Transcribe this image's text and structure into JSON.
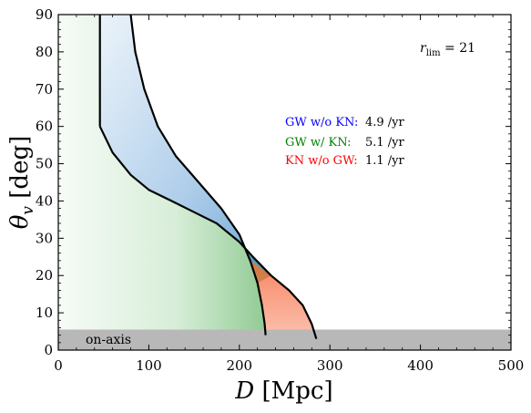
{
  "chart_data": {
    "type": "area",
    "xlabel": "D [Mpc]",
    "ylabel": "θ_v [deg]",
    "xlim": [
      0,
      500
    ],
    "ylim": [
      0,
      90
    ],
    "xticks": [
      "0",
      "100",
      "200",
      "300",
      "400",
      "500"
    ],
    "yticks": [
      "0",
      "10",
      "20",
      "30",
      "40",
      "50",
      "60",
      "70",
      "80",
      "90"
    ],
    "grid": false,
    "annotation_rlim": "r_lim = 21",
    "onaxis_label": "on-axis",
    "onaxis_band": [
      0,
      5.5
    ],
    "legend_placement": "center-right",
    "series": [
      {
        "name": "GW w/o KN:",
        "rate": "4.9 /yr",
        "color": "#0000ff",
        "fill": "#5b9bd5"
      },
      {
        "name": "GW w/ KN:",
        "rate": "5.1 /yr",
        "color": "#008000",
        "fill": "#4caf50"
      },
      {
        "name": "KN w/o GW:",
        "rate": "1.1 /yr",
        "color": "#ff0000",
        "fill": "#f4511e"
      }
    ],
    "curves": {
      "gw_horizon": [
        [
          80,
          90
        ],
        [
          85,
          80
        ],
        [
          95,
          70
        ],
        [
          110,
          60
        ],
        [
          130,
          52
        ],
        [
          155,
          45
        ],
        [
          180,
          38
        ],
        [
          200,
          31
        ],
        [
          212,
          24
        ],
        [
          220,
          18
        ],
        [
          225,
          12
        ],
        [
          228,
          7
        ],
        [
          229,
          4
        ]
      ],
      "kn_vertical": [
        [
          46,
          90
        ],
        [
          46,
          60
        ]
      ],
      "kn_horizon": [
        [
          46,
          60
        ],
        [
          60,
          53
        ],
        [
          80,
          47
        ],
        [
          100,
          43
        ],
        [
          125,
          40
        ],
        [
          150,
          37
        ],
        [
          175,
          34
        ],
        [
          200,
          29
        ],
        [
          215,
          25
        ],
        [
          235,
          20
        ],
        [
          255,
          16
        ],
        [
          270,
          12
        ],
        [
          280,
          7
        ],
        [
          285,
          3
        ]
      ]
    }
  }
}
